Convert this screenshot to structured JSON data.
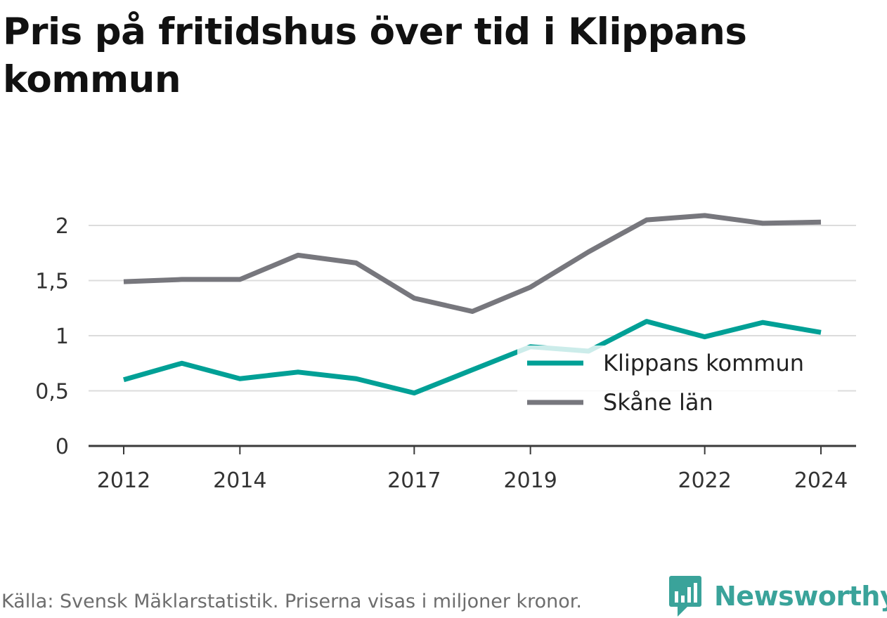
{
  "title": "Pris på fritidshus över tid i Klippans kommun",
  "source": "Källa: Svensk Mäklarstatistik. Priserna visas i miljoner kronor.",
  "logo": {
    "text": "Newsworthy",
    "icon": "bar-chart-speech-icon",
    "color": "#3aa39a"
  },
  "chart_data": {
    "type": "line",
    "x": [
      2012,
      2013,
      2014,
      2015,
      2016,
      2017,
      2018,
      2019,
      2020,
      2021,
      2022,
      2023,
      2024
    ],
    "x_tick_labels": [
      "2012",
      "2014",
      "2017",
      "2019",
      "2022",
      "2024"
    ],
    "x_tick_values": [
      2012,
      2014,
      2017,
      2019,
      2022,
      2024
    ],
    "y_tick_labels": [
      "0",
      "0,5",
      "1",
      "1,5",
      "2"
    ],
    "y_tick_values": [
      0,
      0.5,
      1,
      1.5,
      2
    ],
    "ylim": [
      0,
      2.2
    ],
    "grid": true,
    "legend_position": "bottom-right",
    "series": [
      {
        "name": "Klippans kommun",
        "color": "#00a096",
        "values": [
          0.6,
          0.75,
          0.61,
          0.67,
          0.61,
          0.48,
          0.69,
          0.9,
          0.86,
          1.13,
          0.99,
          1.12,
          1.03
        ]
      },
      {
        "name": "Skåne län",
        "color": "#77777d",
        "values": [
          1.49,
          1.51,
          1.51,
          1.73,
          1.66,
          1.34,
          1.22,
          1.44,
          1.76,
          2.05,
          2.09,
          2.02,
          2.03
        ]
      }
    ]
  }
}
